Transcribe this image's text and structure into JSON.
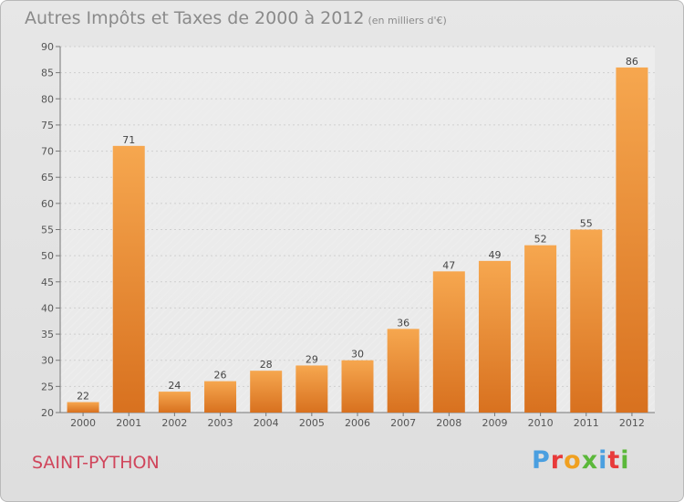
{
  "title": "Autres Impôts et Taxes de 2000 à 2012",
  "unit": "(en milliers d'€)",
  "commune": "SAINT-PYTHON",
  "logo": {
    "text": "Proxiti",
    "colors": [
      "#4a9fe0",
      "#e83a3a",
      "#f0a020",
      "#5bb83a",
      "#4a9fe0",
      "#e83a3a",
      "#5bb83a"
    ]
  },
  "colors": {
    "bar_light": "#f6a74f",
    "bar_dark": "#d8711f",
    "commune": "#d0455b"
  },
  "chart_data": {
    "type": "bar",
    "categories": [
      "2000",
      "2001",
      "2002",
      "2003",
      "2004",
      "2005",
      "2006",
      "2007",
      "2008",
      "2009",
      "2010",
      "2011",
      "2012"
    ],
    "values": [
      22,
      71,
      24,
      26,
      28,
      29,
      30,
      36,
      47,
      49,
      52,
      55,
      86
    ],
    "ylim": [
      20,
      90
    ],
    "yticks": [
      20,
      25,
      30,
      35,
      40,
      45,
      50,
      55,
      60,
      65,
      70,
      75,
      80,
      85,
      90
    ],
    "grid": true
  }
}
